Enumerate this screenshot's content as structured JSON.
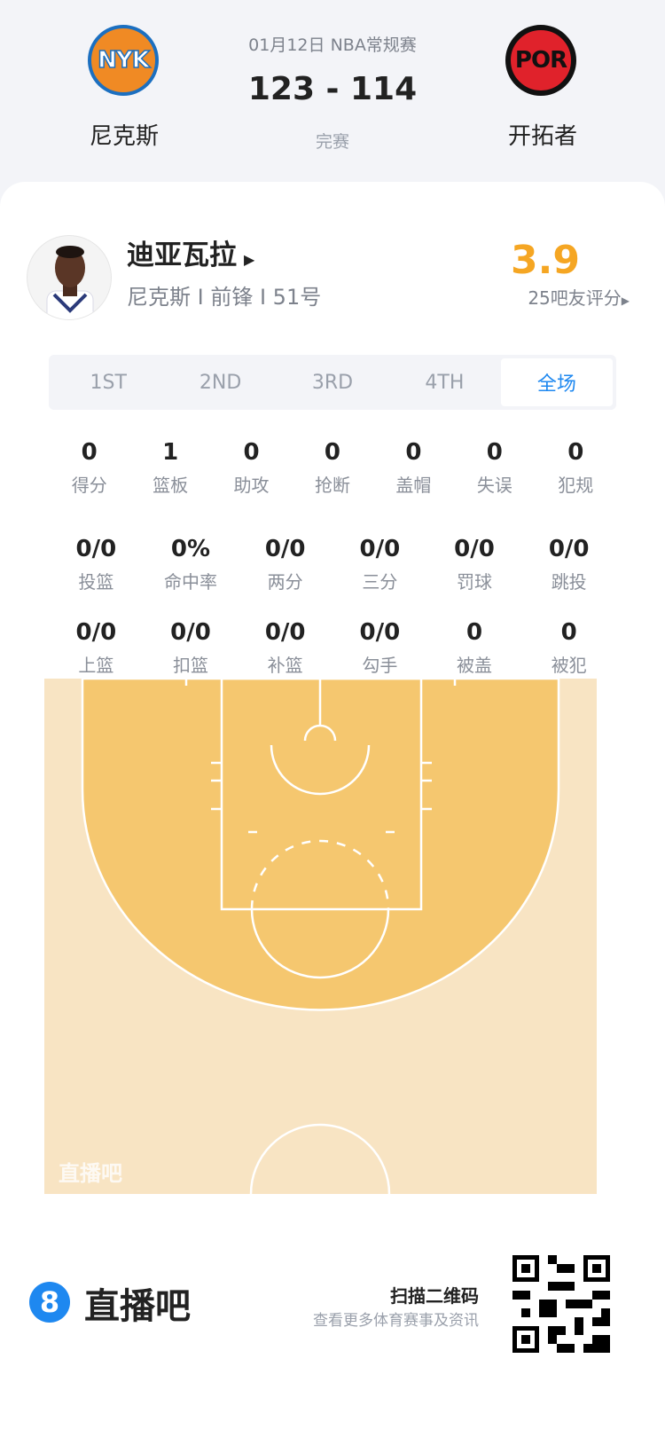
{
  "match": {
    "date_league": "01月12日 NBA常规赛",
    "score": "123 - 114",
    "status": "完赛",
    "home": {
      "abbr": "NYK",
      "name": "尼克斯"
    },
    "away": {
      "abbr": "POR",
      "name": "开拓者"
    }
  },
  "player": {
    "name": "迪亚瓦拉",
    "info": "尼克斯 I 前锋 I 51号",
    "rating": "3.9",
    "rating_label": "25吧友评分"
  },
  "tabs": [
    "1ST",
    "2ND",
    "3RD",
    "4TH",
    "全场"
  ],
  "active_tab": "全场",
  "stats_row1": [
    {
      "v": "0",
      "l": "得分"
    },
    {
      "v": "1",
      "l": "篮板"
    },
    {
      "v": "0",
      "l": "助攻"
    },
    {
      "v": "0",
      "l": "抢断"
    },
    {
      "v": "0",
      "l": "盖帽"
    },
    {
      "v": "0",
      "l": "失误"
    },
    {
      "v": "0",
      "l": "犯规"
    }
  ],
  "stats_row2": [
    {
      "v": "0/0",
      "l": "投篮"
    },
    {
      "v": "0%",
      "l": "命中率"
    },
    {
      "v": "0/0",
      "l": "两分"
    },
    {
      "v": "0/0",
      "l": "三分"
    },
    {
      "v": "0/0",
      "l": "罚球"
    },
    {
      "v": "0/0",
      "l": "跳投"
    }
  ],
  "stats_row3": [
    {
      "v": "0/0",
      "l": "上篮"
    },
    {
      "v": "0/0",
      "l": "扣篮"
    },
    {
      "v": "0/0",
      "l": "补篮"
    },
    {
      "v": "0/0",
      "l": "勾手"
    },
    {
      "v": "0",
      "l": "被盖"
    },
    {
      "v": "0",
      "l": "被犯"
    }
  ],
  "court": {
    "watermark": "直播吧",
    "outer_color": "#f8e4c3",
    "inner_color": "#f5c76f"
  },
  "footer": {
    "brand": "直播吧",
    "brand_mark": "8",
    "scan": "扫描二维码",
    "sub": "查看更多体育赛事及资讯"
  },
  "colors": {
    "accent": "#1e88f0",
    "rating": "#f5a623"
  }
}
